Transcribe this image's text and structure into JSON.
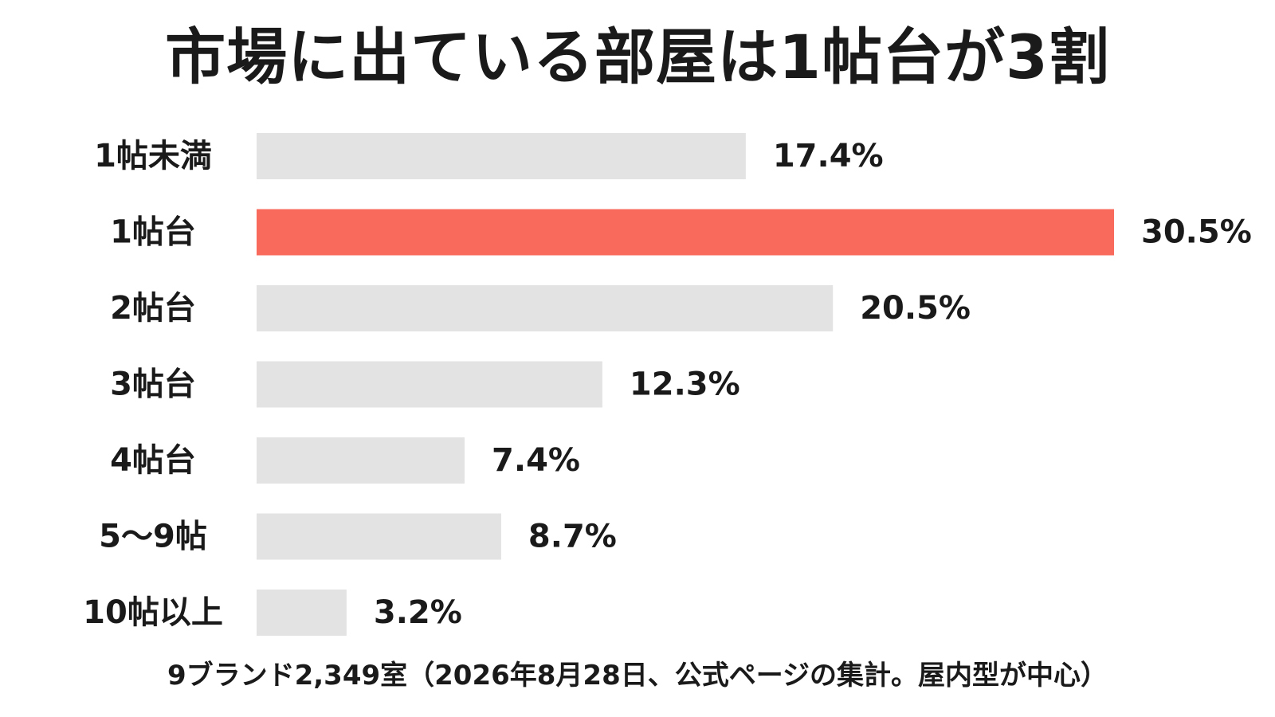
{
  "chart_data": {
    "type": "bar",
    "orientation": "horizontal",
    "title": "市場に出ている部屋は1帖台が3割",
    "categories": [
      "1帖未満",
      "1帖台",
      "2帖台",
      "3帖台",
      "4帖台",
      "5〜9帖",
      "10帖以上"
    ],
    "values": [
      17.4,
      30.5,
      20.5,
      12.3,
      7.4,
      8.7,
      3.2
    ],
    "value_labels": [
      "17.4%",
      "30.5%",
      "20.5%",
      "12.3%",
      "7.4%",
      "8.7%",
      "3.2%"
    ],
    "highlight_index": 1,
    "xlim": [
      0,
      30.5
    ],
    "grid": false,
    "legend": "none",
    "colors": {
      "bar": "#e3e3e3",
      "highlight": "#fa6a5c",
      "text": "#1a1a1a"
    },
    "footnote": "9ブランド2,349室（2026年8月28日、公式ページの集計。屋内型が中心）"
  }
}
